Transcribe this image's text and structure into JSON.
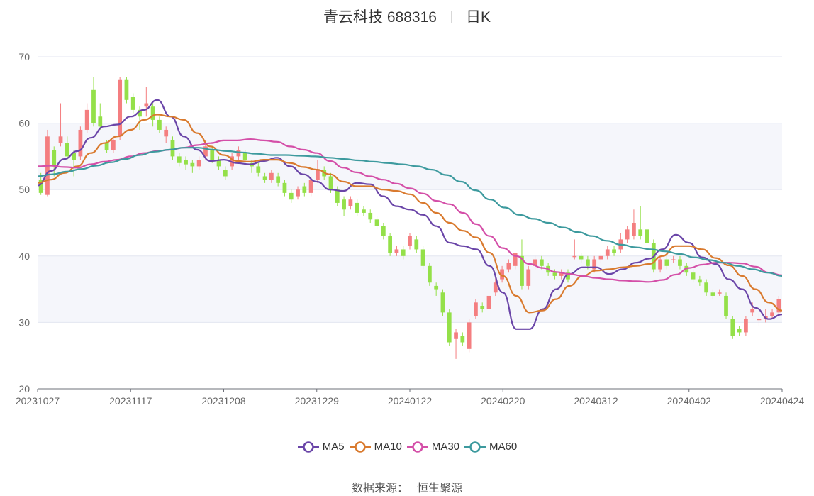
{
  "title": {
    "name": "青云科技 688316",
    "period": "日K"
  },
  "source": {
    "label": "数据来源：",
    "value": "恒生聚源"
  },
  "colors": {
    "up": "#f47e80",
    "down": "#94e049",
    "grid": "#e3e6f0",
    "band": "#f5f6fb"
  },
  "chart_data": {
    "type": "candlestick",
    "title": "青云科技 688316",
    "ylim": [
      20,
      70
    ],
    "y_ticks": [
      "70",
      "60",
      "50",
      "40",
      "30",
      "20"
    ],
    "x_ticks": [
      "20231027",
      "20231117",
      "20231208",
      "20231229",
      "20240122",
      "20240220",
      "20240312",
      "20240402",
      "20240424"
    ],
    "legend_position": "bottom",
    "series": [
      {
        "name": "MA5",
        "color": "#6a45a8",
        "values": [
          50.6,
          52.8,
          54.6,
          55.8,
          57.8,
          59.5,
          59.8,
          61.0,
          62.0,
          63.5,
          61.0,
          58.0,
          56.0,
          54.3,
          54.5,
          54.0,
          53.8,
          54.3,
          54.8,
          53.5,
          52.3,
          51.2,
          50.0,
          49.8,
          51.0,
          50.8,
          49.0,
          47.5,
          47.0,
          46.2,
          44.5,
          42.0,
          41.5,
          41.0,
          38.5,
          34.5,
          29.0,
          29.0,
          32.0,
          35.0,
          37.3,
          38.3,
          38.3,
          37.3,
          38.0,
          39.0,
          39.6,
          41.0,
          43.2,
          42.0,
          39.8,
          38.8,
          36.5,
          35.0,
          32.2,
          30.5,
          31.2
        ]
      },
      {
        "name": "MA10",
        "color": "#d97a2e",
        "values": [
          51.0,
          51.5,
          52.5,
          53.5,
          55.5,
          57.0,
          58.0,
          59.0,
          60.5,
          61.3,
          61.0,
          60.5,
          58.5,
          56.5,
          55.2,
          54.3,
          54.2,
          54.5,
          54.5,
          54.0,
          53.4,
          53.0,
          52.3,
          51.2,
          50.5,
          50.5,
          50.0,
          49.8,
          49.3,
          48.0,
          46.5,
          45.0,
          43.8,
          42.8,
          40.5,
          37.0,
          34.0,
          31.5,
          31.8,
          33.5,
          35.5,
          37.0,
          37.8,
          38.0,
          38.3,
          38.5,
          38.8,
          40.0,
          41.5,
          41.5,
          41.0,
          39.7,
          38.6,
          37.0,
          35.0,
          33.0,
          31.8
        ]
      },
      {
        "name": "MA30",
        "color": "#d44fa8",
        "values": [
          53.5,
          53.6,
          53.4,
          53.3,
          53.8,
          54.2,
          54.5,
          55.0,
          55.5,
          55.8,
          56.0,
          56.3,
          56.7,
          57.0,
          57.4,
          57.4,
          57.6,
          57.4,
          57.2,
          56.5,
          56.0,
          55.5,
          54.3,
          53.3,
          52.6,
          52.0,
          51.5,
          50.9,
          50.2,
          49.4,
          48.3,
          47.8,
          46.5,
          44.8,
          43.0,
          41.2,
          40.0,
          38.8,
          38.2,
          37.6,
          37.3,
          37.0,
          36.7,
          36.5,
          36.3,
          36.2,
          36.1,
          36.4,
          37.2,
          38.2,
          38.7,
          39.0,
          39.0,
          38.9,
          38.4,
          37.5,
          37.1
        ]
      },
      {
        "name": "MA60",
        "color": "#3d9a9e",
        "values": [
          52.0,
          52.3,
          52.7,
          53.1,
          53.6,
          54.1,
          54.6,
          55.2,
          55.7,
          56.0,
          56.3,
          56.3,
          56.0,
          55.8,
          55.6,
          55.4,
          55.2,
          55.2,
          55.1,
          55.0,
          54.8,
          54.6,
          54.4,
          54.2,
          54.0,
          53.8,
          53.5,
          53.0,
          52.2,
          51.2,
          49.9,
          48.5,
          47.3,
          46.2,
          45.6,
          45.0,
          44.3,
          43.6,
          43.0,
          42.3,
          41.7,
          41.3,
          41.0,
          40.7,
          40.3,
          39.8,
          39.4,
          39.0,
          38.5,
          38.0,
          37.5,
          37.0
        ]
      }
    ],
    "candles": [
      [
        51.5,
        49.5,
        52.5,
        49.2
      ],
      [
        49.2,
        58.0,
        59.0,
        49.0
      ],
      [
        56.0,
        53.5,
        56.5,
        52.0
      ],
      [
        57.0,
        58.0,
        63.0,
        56.5
      ],
      [
        57.0,
        55.0,
        58.0,
        54.5
      ],
      [
        55.5,
        54.5,
        56.0,
        52.0
      ],
      [
        55.0,
        59.0,
        59.5,
        54.5
      ],
      [
        59.0,
        62.0,
        63.0,
        58.5
      ],
      [
        65.0,
        60.0,
        67.0,
        59.5
      ],
      [
        61.0,
        59.5,
        63.0,
        59.0
      ],
      [
        57.0,
        56.0,
        57.5,
        55.5
      ],
      [
        56.0,
        57.5,
        58.0,
        55.5
      ],
      [
        58.0,
        66.5,
        67.0,
        57.5
      ],
      [
        66.5,
        63.5,
        67.0,
        63.0
      ],
      [
        64.0,
        62.0,
        64.5,
        61.5
      ],
      [
        62.0,
        61.0,
        62.5,
        59.0
      ],
      [
        62.5,
        63.0,
        65.5,
        61.0
      ],
      [
        62.5,
        60.5,
        63.0,
        59.5
      ],
      [
        60.5,
        59.0,
        61.0,
        58.5
      ],
      [
        58.0,
        59.0,
        59.5,
        57.0
      ],
      [
        57.5,
        55.0,
        58.0,
        54.5
      ],
      [
        55.0,
        54.0,
        55.5,
        53.5
      ],
      [
        54.5,
        53.8,
        55.0,
        53.0
      ],
      [
        54.0,
        53.5,
        54.5,
        52.5
      ],
      [
        53.5,
        54.5,
        55.0,
        53.0
      ],
      [
        55.0,
        56.5,
        57.5,
        54.5
      ],
      [
        56.0,
        54.5,
        56.5,
        54.0
      ],
      [
        54.5,
        53.5,
        55.0,
        53.0
      ],
      [
        53.0,
        52.0,
        53.5,
        51.5
      ],
      [
        53.5,
        55.0,
        55.5,
        53.0
      ],
      [
        55.0,
        56.0,
        56.5,
        54.5
      ],
      [
        55.5,
        54.5,
        56.0,
        54.0
      ],
      [
        54.0,
        53.5,
        54.5,
        52.5
      ],
      [
        53.5,
        52.5,
        54.0,
        52.0
      ],
      [
        52.0,
        51.5,
        52.5,
        51.0
      ],
      [
        51.5,
        52.5,
        53.0,
        51.0
      ],
      [
        52.0,
        51.0,
        52.5,
        50.5
      ],
      [
        51.0,
        49.5,
        51.5,
        49.0
      ],
      [
        49.5,
        48.5,
        50.0,
        48.0
      ],
      [
        49.0,
        50.0,
        50.5,
        48.5
      ],
      [
        50.5,
        49.5,
        51.0,
        49.0
      ],
      [
        49.5,
        51.5,
        52.0,
        49.0
      ],
      [
        51.5,
        53.0,
        54.5,
        51.0
      ],
      [
        53.0,
        52.0,
        53.5,
        51.5
      ],
      [
        52.0,
        50.0,
        52.5,
        49.5
      ],
      [
        50.0,
        48.0,
        50.5,
        47.5
      ],
      [
        48.5,
        47.0,
        49.0,
        46.0
      ],
      [
        47.5,
        48.5,
        49.0,
        47.0
      ],
      [
        48.0,
        46.5,
        48.5,
        46.0
      ],
      [
        47.0,
        46.5,
        47.5,
        46.0
      ],
      [
        46.5,
        45.5,
        47.0,
        45.0
      ],
      [
        45.5,
        44.5,
        46.0,
        44.0
      ],
      [
        44.5,
        43.0,
        45.0,
        42.5
      ],
      [
        43.0,
        40.5,
        43.5,
        40.0
      ],
      [
        40.5,
        41.0,
        41.5,
        40.0
      ],
      [
        41.0,
        40.0,
        41.5,
        39.5
      ],
      [
        41.5,
        43.0,
        43.5,
        41.0
      ],
      [
        42.5,
        41.0,
        43.0,
        40.5
      ],
      [
        41.0,
        38.5,
        41.5,
        38.0
      ],
      [
        38.5,
        36.0,
        39.0,
        35.5
      ],
      [
        35.5,
        35.0,
        36.0,
        34.0
      ],
      [
        34.5,
        31.5,
        35.0,
        31.0
      ],
      [
        31.5,
        27.0,
        32.0,
        26.5
      ],
      [
        27.5,
        28.5,
        29.0,
        24.5
      ],
      [
        28.0,
        27.0,
        28.5,
        26.5
      ],
      [
        26.0,
        30.0,
        30.5,
        25.5
      ],
      [
        31.0,
        33.0,
        33.5,
        30.5
      ],
      [
        32.5,
        32.0,
        33.0,
        31.5
      ],
      [
        32.0,
        34.0,
        34.5,
        31.5
      ],
      [
        34.5,
        36.0,
        37.0,
        34.0
      ],
      [
        36.5,
        38.0,
        38.5,
        36.0
      ],
      [
        38.0,
        39.0,
        39.5,
        37.5
      ],
      [
        38.5,
        40.5,
        40.5,
        38.0
      ],
      [
        40.0,
        35.5,
        42.5,
        35.0
      ],
      [
        35.5,
        38.0,
        38.5,
        35.0
      ],
      [
        38.5,
        39.5,
        40.0,
        38.0
      ],
      [
        39.5,
        38.5,
        40.0,
        38.0
      ],
      [
        38.5,
        37.5,
        39.0,
        37.0
      ],
      [
        37.5,
        37.0,
        38.0,
        36.5
      ],
      [
        37.0,
        37.5,
        38.0,
        36.5
      ],
      [
        37.5,
        36.5,
        38.0,
        36.0
      ],
      [
        40.0,
        40.0,
        42.5,
        39.5
      ],
      [
        40.0,
        39.5,
        40.5,
        39.0
      ],
      [
        39.5,
        38.5,
        40.0,
        38.0
      ],
      [
        38.0,
        39.5,
        40.0,
        37.5
      ],
      [
        39.5,
        40.0,
        40.5,
        39.0
      ],
      [
        40.0,
        41.0,
        41.5,
        39.5
      ],
      [
        41.0,
        40.5,
        41.5,
        40.0
      ],
      [
        41.0,
        42.5,
        43.5,
        40.5
      ],
      [
        42.5,
        44.0,
        44.5,
        42.0
      ],
      [
        43.0,
        45.0,
        47.0,
        42.5
      ],
      [
        44.0,
        43.0,
        47.5,
        42.5
      ],
      [
        44.0,
        42.0,
        44.5,
        41.5
      ],
      [
        42.0,
        38.0,
        42.5,
        37.5
      ],
      [
        38.0,
        39.5,
        40.0,
        37.5
      ],
      [
        39.5,
        38.5,
        40.0,
        38.0
      ],
      [
        39.5,
        39.5,
        40.0,
        39.0
      ],
      [
        39.5,
        38.5,
        40.0,
        38.0
      ],
      [
        38.5,
        37.5,
        39.0,
        37.0
      ],
      [
        37.5,
        36.5,
        38.0,
        36.0
      ],
      [
        36.5,
        36.0,
        37.0,
        35.5
      ],
      [
        36.0,
        34.5,
        36.5,
        34.0
      ],
      [
        34.5,
        34.0,
        35.0,
        33.5
      ],
      [
        34.5,
        34.5,
        35.0,
        34.0
      ],
      [
        34.0,
        31.0,
        34.5,
        30.5
      ],
      [
        30.5,
        28.0,
        31.0,
        27.5
      ],
      [
        29.0,
        28.5,
        29.5,
        28.0
      ],
      [
        28.5,
        30.5,
        31.0,
        28.0
      ],
      [
        31.5,
        32.0,
        33.0,
        31.0
      ],
      [
        30.5,
        30.5,
        31.5,
        29.5
      ],
      [
        30.5,
        31.0,
        32.0,
        30.0
      ],
      [
        31.0,
        31.5,
        32.0,
        30.5
      ],
      [
        31.5,
        33.5,
        34.0,
        31.0
      ]
    ]
  }
}
